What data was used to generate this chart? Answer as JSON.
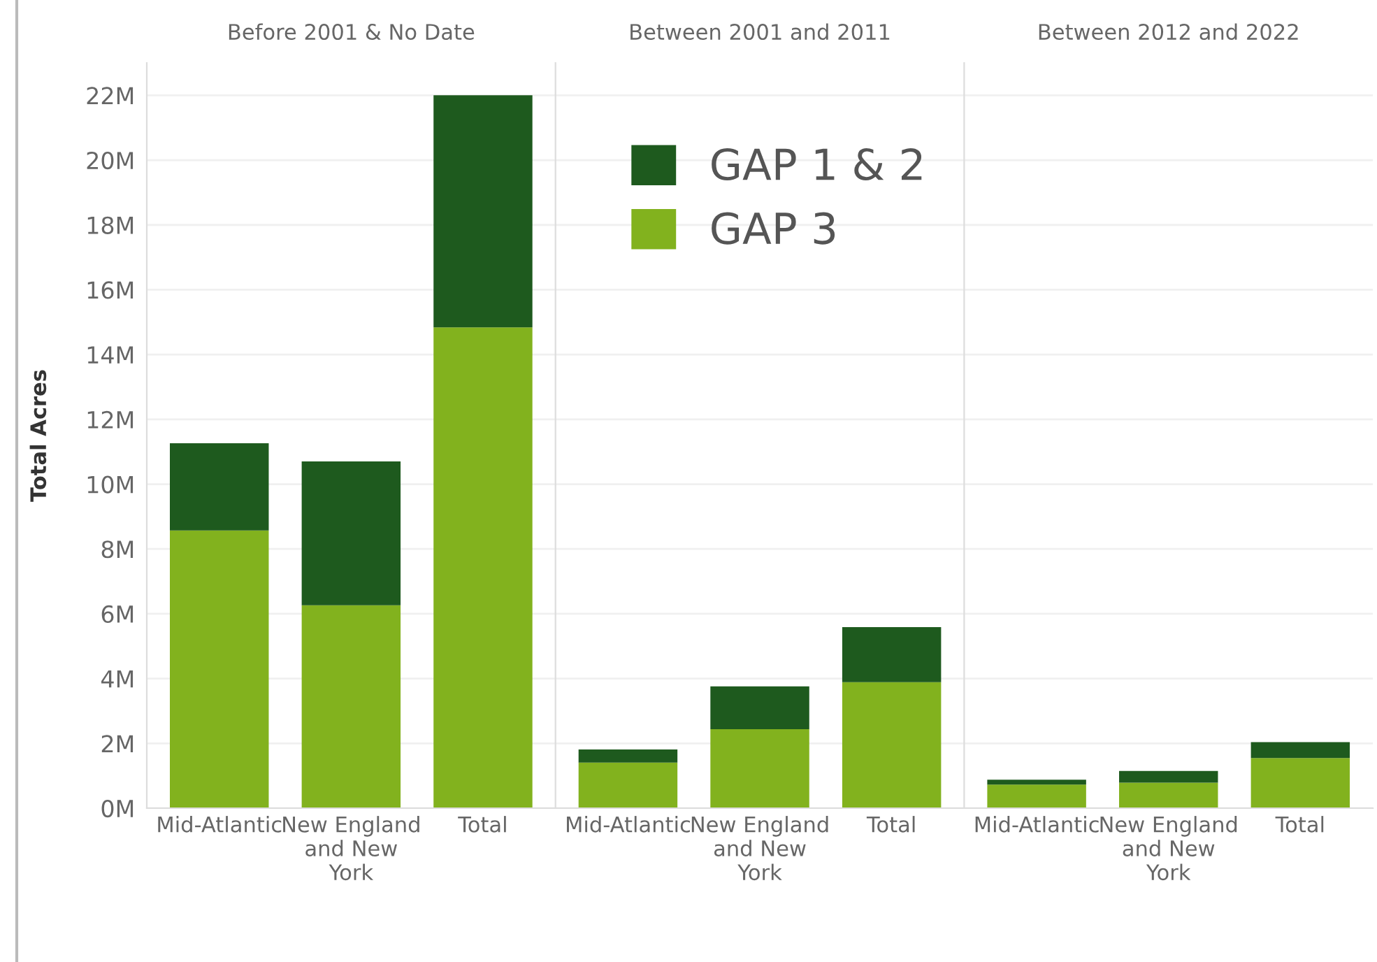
{
  "chart_data": [
    {
      "type": "bar",
      "title": "Before 2001 & No Date",
      "ylabel": "Total Acres",
      "categories": [
        "Mid-Atlantic",
        "New England\nand New\nYork",
        "Total"
      ],
      "stacked": true,
      "grid": "y",
      "legend": false,
      "series": [
        {
          "color": "#82b21e",
          "values": [
            8570000,
            6260000,
            14840000
          ]
        },
        {
          "color": "#1e5a1e",
          "values": [
            2690000,
            4440000,
            7160000
          ]
        }
      ],
      "ylim": [
        0,
        23000000
      ],
      "yticks": [
        {
          "value": 0,
          "label": "0M"
        },
        {
          "value": 2000000,
          "label": "2M"
        },
        {
          "value": 4000000,
          "label": "4M"
        },
        {
          "value": 6000000,
          "label": "6M"
        },
        {
          "value": 8000000,
          "label": "8M"
        },
        {
          "value": 10000000,
          "label": "10M"
        },
        {
          "value": 12000000,
          "label": "12M"
        },
        {
          "value": 14000000,
          "label": "14M"
        },
        {
          "value": 16000000,
          "label": "16M"
        },
        {
          "value": 18000000,
          "label": "18M"
        },
        {
          "value": 20000000,
          "label": "20M"
        },
        {
          "value": 22000000,
          "label": "22M"
        }
      ]
    },
    {
      "type": "bar",
      "title": "Between 2001 and 2011",
      "categories": [
        "Mid-Atlantic",
        "New England\nand New\nYork",
        "Total"
      ],
      "stacked": true,
      "grid": "y",
      "legend": "top right",
      "tick_labels": "x",
      "series": [
        {
          "name": "GAP 3",
          "color": "#82b21e",
          "values": [
            1410000,
            2440000,
            3890000
          ]
        },
        {
          "name": "GAP 1 & 2",
          "color": "#1e5a1e",
          "values": [
            400000,
            1320000,
            1700000
          ]
        }
      ],
      "ylim": [
        0,
        23000000
      ]
    },
    {
      "type": "bar",
      "title": "Between 2012 and 2022",
      "categories": [
        "Mid-Atlantic",
        "New England\nand New\nYork",
        "Total"
      ],
      "stacked": true,
      "grid": "y",
      "legend": false,
      "tick_labels": "x",
      "series": [
        {
          "color": "#82b21e",
          "values": [
            730000,
            790000,
            1550000
          ]
        },
        {
          "color": "#1e5a1e",
          "values": [
            150000,
            360000,
            490000
          ]
        }
      ],
      "ylim": [
        0,
        23000000
      ]
    }
  ]
}
